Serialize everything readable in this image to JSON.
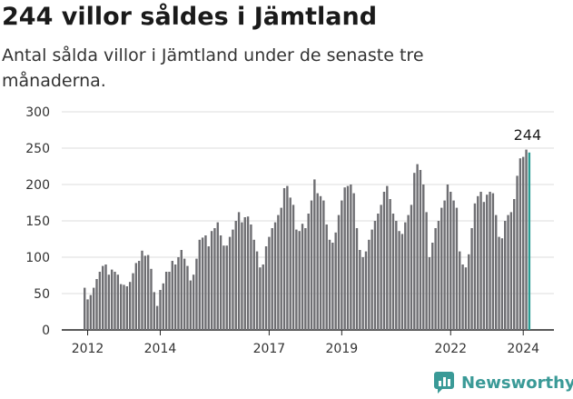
{
  "title": "244 villor såldes i Jämtland",
  "subtitle": "Antal sålda villor i Jämtland under de senaste tre månaderna.",
  "brand": {
    "name": "Newsworthy",
    "icon": "newsworthy-logo-icon",
    "color": "#3a9a97"
  },
  "colors": {
    "bar": "#6e6e72",
    "highlight": "#2a9d94",
    "grid": "#dcdcdc",
    "axis": "#222222"
  },
  "chart_data": {
    "type": "bar",
    "title": "",
    "xlabel": "",
    "ylabel": "",
    "ylim": [
      0,
      300
    ],
    "yticks": [
      0,
      50,
      100,
      150,
      200,
      250,
      300
    ],
    "xticks": [
      "2012",
      "2014",
      "2017",
      "2019",
      "2022",
      "2024"
    ],
    "grid": true,
    "start": "2011-12",
    "highlight_label": "244",
    "series": [
      {
        "values": [
          58,
          42,
          48,
          58,
          70,
          80,
          88,
          90,
          76,
          83,
          80,
          76,
          63,
          62,
          60,
          66,
          78,
          92,
          95,
          109,
          102,
          103,
          84,
          52,
          33,
          55,
          64,
          80,
          80,
          95,
          90,
          100,
          110,
          98,
          88,
          68,
          76,
          98,
          124,
          127,
          130,
          115,
          136,
          140,
          148,
          130,
          116,
          116,
          128,
          138,
          150,
          162,
          148,
          155,
          156,
          145,
          124,
          108,
          86,
          90,
          115,
          128,
          140,
          148,
          158,
          168,
          195,
          198,
          182,
          172,
          138,
          136,
          146,
          140,
          160,
          178,
          207,
          188,
          184,
          178,
          145,
          124,
          120,
          134,
          158,
          178,
          196,
          198,
          200,
          188,
          140,
          110,
          100,
          108,
          124,
          138,
          150,
          160,
          172,
          190,
          198,
          180,
          160,
          150,
          136,
          132,
          148,
          158,
          172,
          216,
          228,
          220,
          200,
          162,
          100,
          120,
          140,
          150,
          168,
          178,
          200,
          190,
          178,
          168,
          108,
          90,
          86,
          104,
          140,
          174,
          184,
          190,
          176,
          186,
          190,
          188,
          158,
          128,
          126,
          150,
          158,
          162,
          180,
          212,
          236,
          238,
          248,
          244
        ]
      }
    ]
  }
}
